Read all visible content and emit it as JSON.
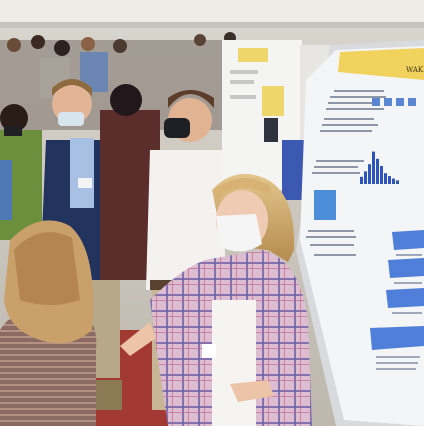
{
  "scene": {
    "description_kind": "photograph",
    "colors": {
      "hall_wall": "#e9e6df",
      "floor": "#a33c34",
      "poster_board": "#f2f3f5",
      "poster_header": "#f2d35a",
      "plaid_blazer": "#d8b8cf",
      "navy_blazer": "#22345d",
      "white_shirt": "#f3f2ef"
    }
  },
  "poster": {
    "logo_text": "WAKE",
    "chart_heights": [
      0.2,
      0.35,
      0.55,
      0.9,
      0.7,
      0.5,
      0.3,
      0.22,
      0.15,
      0.1
    ]
  }
}
